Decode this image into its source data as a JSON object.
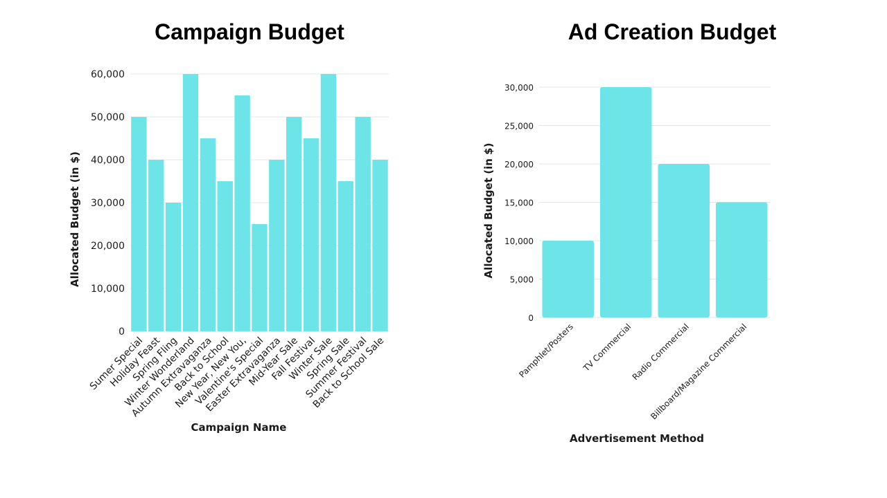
{
  "chart_data": [
    {
      "type": "bar",
      "title": "Campaign Budget",
      "xlabel": "Campaign Name",
      "ylabel": "Allocated Budget (in $)",
      "categories": [
        "Sumer Special",
        "Holiday Feast",
        "Spring Fling",
        "Winter Wonderland",
        "Autumn Extravaganza",
        "Back to School",
        "New Year, New You,",
        "Valentine's Special",
        "Easter Extravaganza",
        "Mid-Year Sale",
        "Fall Festival",
        "Winter Sale",
        "Spring Sale",
        "Summer Festival",
        "Back to School Sale"
      ],
      "values": [
        50000,
        40000,
        30000,
        60000,
        45000,
        35000,
        55000,
        25000,
        40000,
        50000,
        45000,
        60000,
        35000,
        50000,
        40000
      ],
      "ylim": [
        0,
        60000
      ],
      "yticks": [
        0,
        10000,
        20000,
        30000,
        40000,
        50000,
        60000
      ],
      "ytick_labels": [
        "0",
        "10,000",
        "20,000",
        "30,000",
        "40,000",
        "50,000",
        "60,000"
      ],
      "grid": true,
      "color": "#6ce4e8"
    },
    {
      "type": "bar",
      "title": "Ad Creation Budget",
      "xlabel": "Advertisement Method",
      "ylabel": "Allocated Budget (in $)",
      "categories": [
        "Pamphlet/Posters",
        "TV Commercial",
        "Radio Commercial",
        "Billboard/Magazine Commercial"
      ],
      "values": [
        10000,
        30000,
        20000,
        15000
      ],
      "ylim": [
        0,
        30000
      ],
      "yticks": [
        0,
        5000,
        10000,
        15000,
        20000,
        25000,
        30000
      ],
      "ytick_labels": [
        "0",
        "5,000",
        "10,000",
        "15,000",
        "20,000",
        "25,000",
        "30,000"
      ],
      "grid": true,
      "color": "#6ce4e8"
    }
  ]
}
